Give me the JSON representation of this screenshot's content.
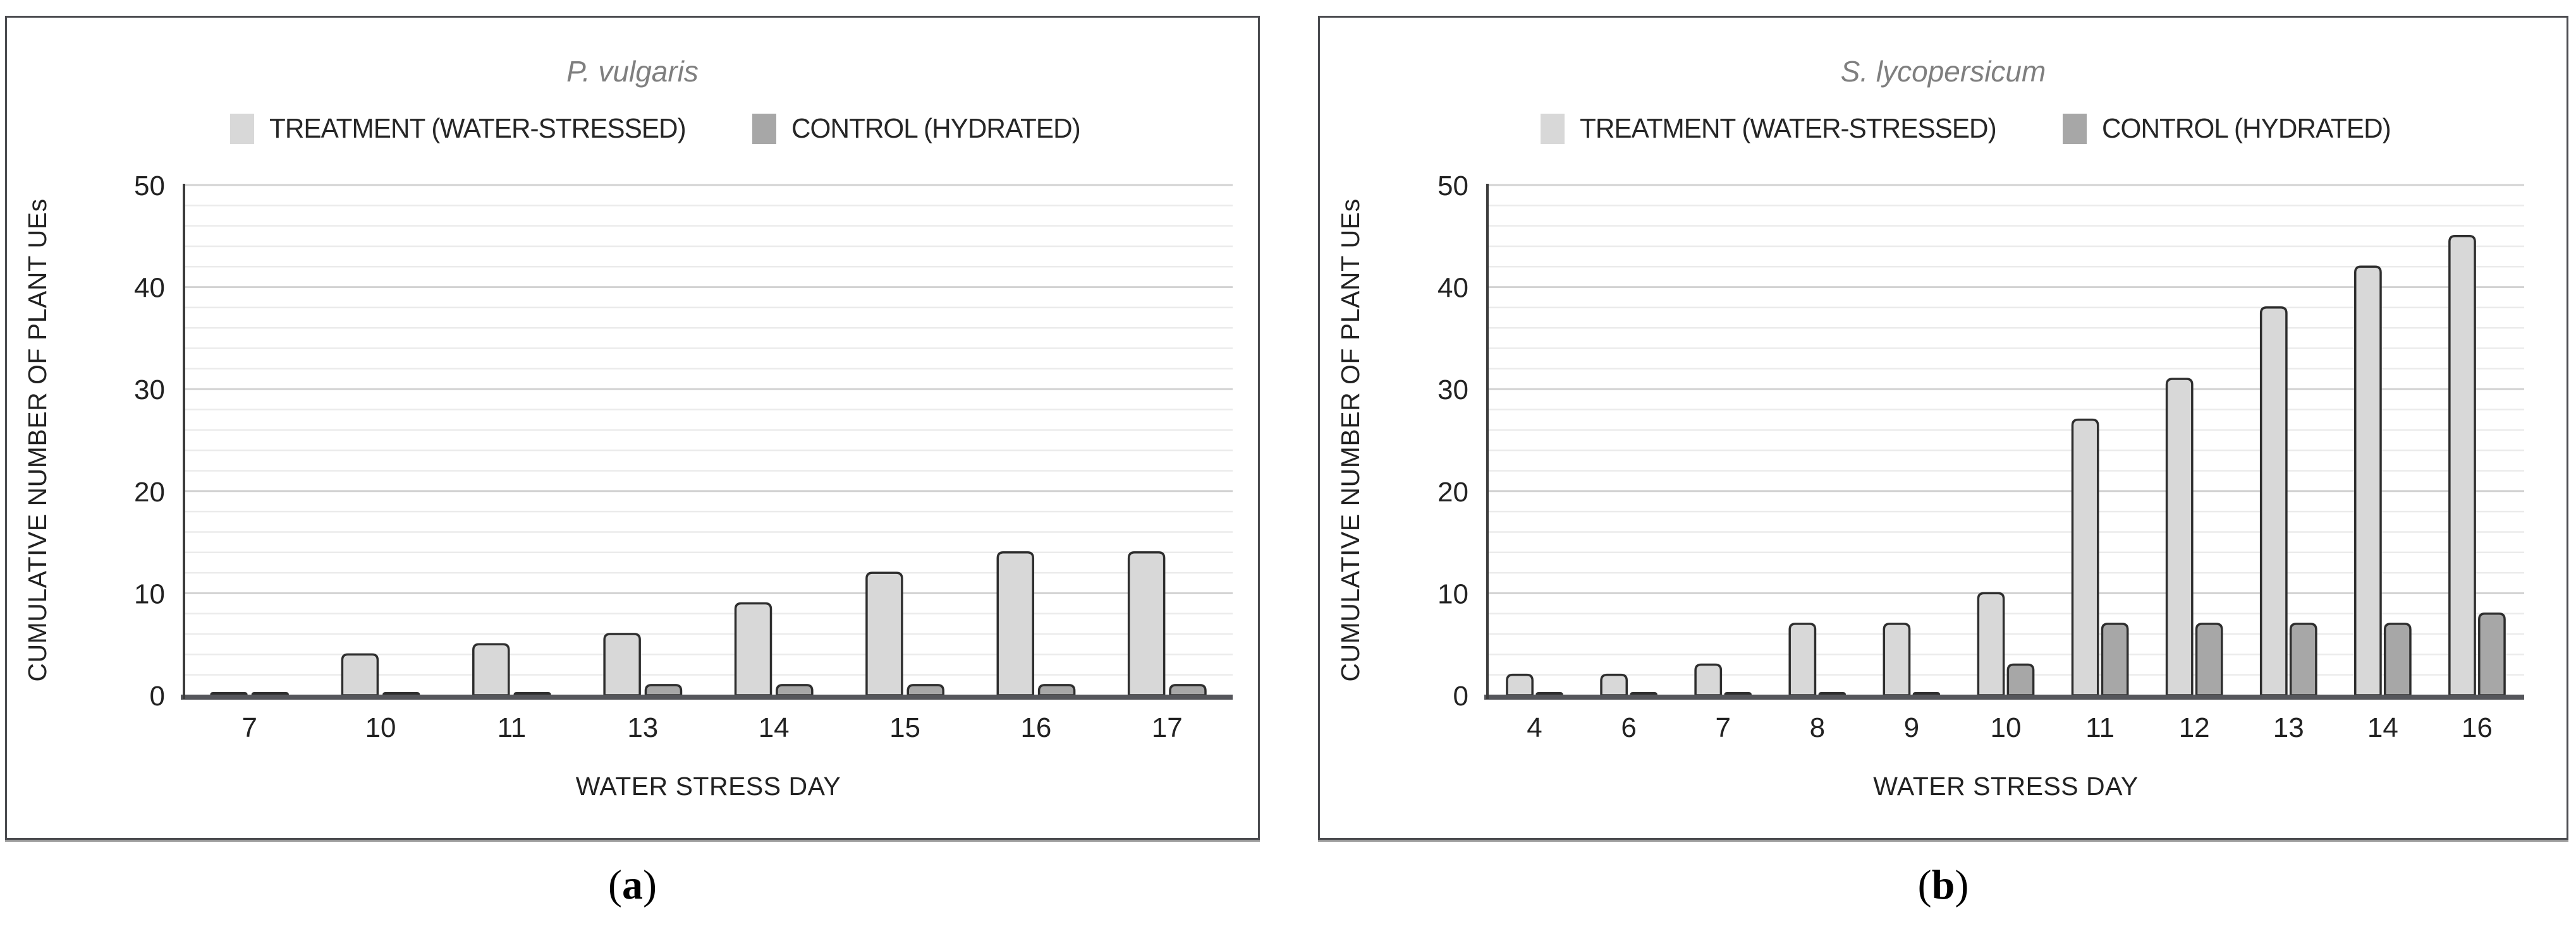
{
  "figure": {
    "caption_open": "(",
    "caption_close": ")"
  },
  "colors": {
    "treatment": "#d8d8d8",
    "control": "#a7a7a7",
    "bar_stroke": "#2e2e2e",
    "grid_minor": "#ebebeb",
    "grid_major": "#d2d2d2",
    "spine": "#3c3c3c",
    "baseline": "#55565b",
    "panel_border": "#4b4c50",
    "title_gray": "#7f7f7f",
    "text": "#222222"
  },
  "chart_data": [
    {
      "type": "bar",
      "title": "P. vulgaris",
      "caption_letter": "a",
      "xlabel": "WATER STRESS DAY",
      "ylabel": "CUMULATIVE NUMBER OF PLANT UEs",
      "categories": [
        "7",
        "10",
        "11",
        "13",
        "14",
        "15",
        "16",
        "17"
      ],
      "series": [
        {
          "name": "TREATMENT (WATER-STRESSED)",
          "values": [
            0.2,
            4,
            5,
            6,
            9,
            12,
            14,
            14
          ]
        },
        {
          "name": "CONTROL (HYDRATED)",
          "values": [
            0.2,
            0.2,
            0.2,
            1,
            1,
            1,
            1,
            1
          ]
        }
      ],
      "ylim": [
        0,
        50
      ],
      "yticks": [
        0,
        10,
        20,
        30,
        40,
        50
      ],
      "ytick_minor_step": 2,
      "grid": "horizontal",
      "legend_position": "top"
    },
    {
      "type": "bar",
      "title": "S. lycopersicum",
      "caption_letter": "b",
      "xlabel": "WATER STRESS DAY",
      "ylabel": "CUMULATIVE NUMBER OF PLANT UEs",
      "categories": [
        "4",
        "6",
        "7",
        "8",
        "9",
        "10",
        "11",
        "12",
        "13",
        "14",
        "16"
      ],
      "series": [
        {
          "name": "TREATMENT (WATER-STRESSED)",
          "values": [
            2,
            2,
            3,
            7,
            7,
            10,
            27,
            31,
            38,
            42,
            45
          ]
        },
        {
          "name": "CONTROL (HYDRATED)",
          "values": [
            0.2,
            0.2,
            0.2,
            0.2,
            0.2,
            3,
            7,
            7,
            7,
            7,
            8
          ]
        }
      ],
      "ylim": [
        0,
        50
      ],
      "yticks": [
        0,
        10,
        20,
        30,
        40,
        50
      ],
      "ytick_minor_step": 2,
      "grid": "horizontal",
      "legend_position": "top"
    }
  ]
}
